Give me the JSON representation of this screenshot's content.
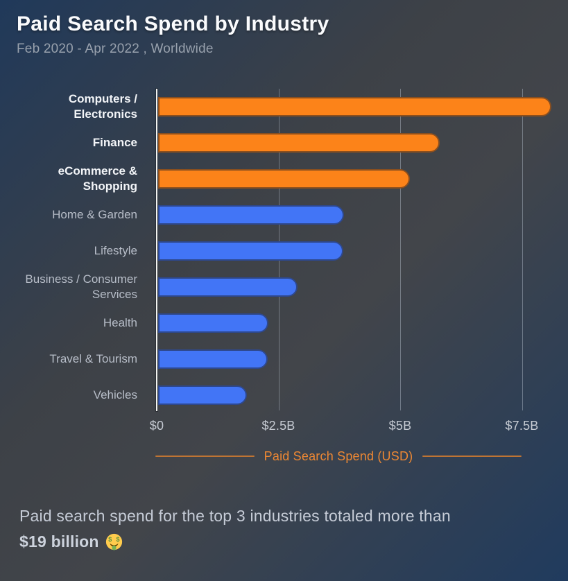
{
  "header": {
    "title": "Paid Search Spend by Industry",
    "subtitle": "Feb 2020 - Apr 2022 , Worldwide"
  },
  "chart_data": {
    "type": "bar",
    "orientation": "horizontal",
    "title": "Paid Search Spend by Industry",
    "subtitle": "Feb 2020 - Apr 2022 , Worldwide",
    "categories": [
      "Computers / Electronics",
      "Finance",
      "eCommerce & Shopping",
      "Home & Garden",
      "Lifestyle",
      "Business / Consumer Services",
      "Health",
      "Travel & Tourism",
      "Vehicles"
    ],
    "values": [
      8.08,
      5.78,
      5.17,
      3.82,
      3.8,
      2.87,
      2.27,
      2.25,
      1.82
    ],
    "unit": "USD billions",
    "colors": [
      "#FC8319",
      "#FC8319",
      "#FC8319",
      "#4275F6",
      "#4275F6",
      "#4275F6",
      "#4275F6",
      "#4275F6",
      "#4275F6"
    ],
    "highlight_color": "#FC8319",
    "base_color": "#4275F6",
    "xlabel": "Paid Search Spend (USD)",
    "xticks": [
      {
        "label": "$0",
        "value": 0
      },
      {
        "label": "$2.5B",
        "value": 2.5
      },
      {
        "label": "$5B",
        "value": 5
      },
      {
        "label": "$7.5B",
        "value": 7.5
      }
    ],
    "xlim": [
      0,
      8.4
    ],
    "grid": "vertical",
    "legend": "none"
  },
  "caption": {
    "text": "Paid search spend for the top 3 industries totaled more than",
    "highlight": "$19 billion",
    "emoji": "money-mouth-face"
  }
}
